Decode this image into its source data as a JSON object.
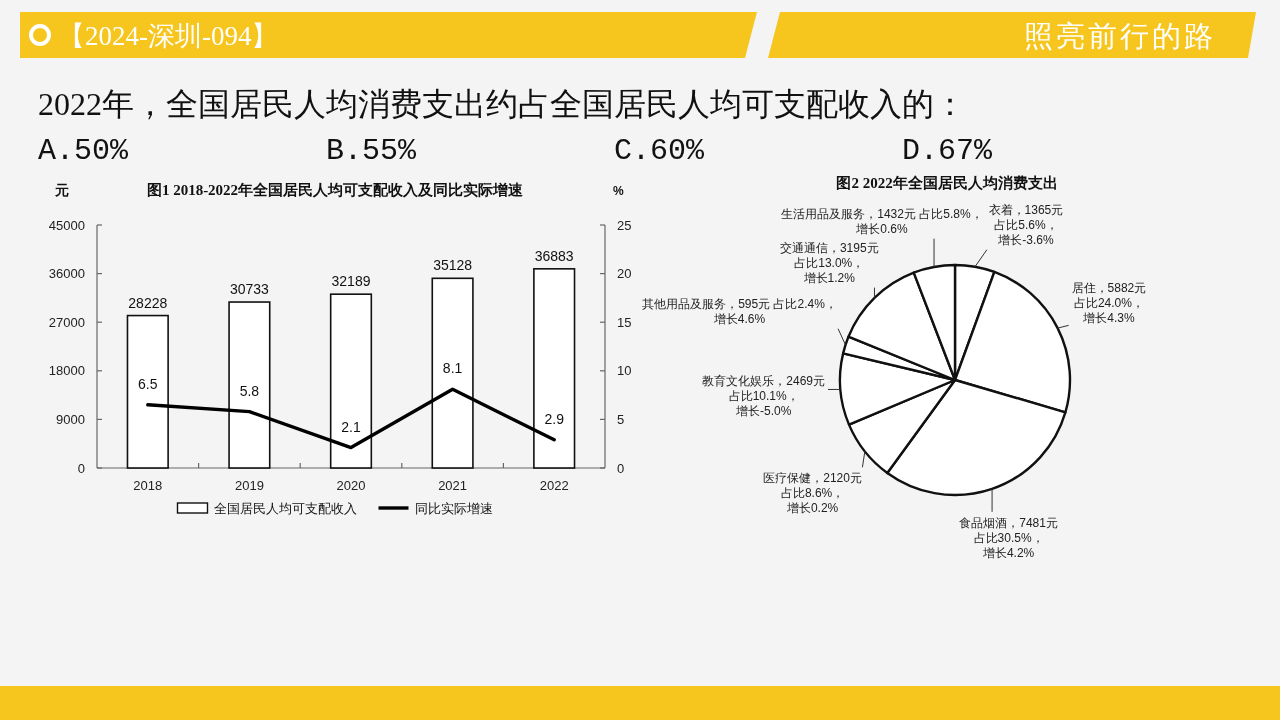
{
  "chart_data": [
    {
      "type": "bar",
      "title": "图1 2018-2022年全国居民人均可支配收入及同比实际增速",
      "ylabel": "元",
      "y2label": "%",
      "categories": [
        "2018",
        "2019",
        "2020",
        "2021",
        "2022"
      ],
      "series": [
        {
          "name": "全国居民人均可支配收入",
          "type": "bar",
          "color": "#ffffff",
          "values": [
            28228,
            30733,
            32189,
            35128,
            36883
          ]
        },
        {
          "name": "同比实际增速",
          "type": "line",
          "color": "#000000",
          "axis": "y2",
          "values": [
            6.5,
            5.8,
            2.1,
            8.1,
            2.9
          ]
        }
      ],
      "ylim": [
        0,
        45000
      ],
      "yticks": [
        0,
        9000,
        18000,
        27000,
        36000,
        45000
      ],
      "y2lim": [
        0,
        25
      ],
      "y2ticks": [
        0,
        5,
        10,
        15,
        20,
        25
      ],
      "data_labels": true,
      "legend": "bottom",
      "annotations": [
        "【2024-深圳-094】",
        "照亮前行的路",
        "2022年，全国居民人均消费支出约占全国居民人均可支配收入的：",
        "A.50%",
        "B.55%",
        "C.60%",
        "D.67%"
      ]
    },
    {
      "type": "pie",
      "title": "图2 2022年全国居民人均消费支出",
      "categories": [
        "衣着",
        "居住",
        "食品烟酒",
        "医疗保健",
        "教育文化娱乐",
        "其他用品及服务",
        "交通通信",
        "生活用品及服务"
      ],
      "values": [
        1365,
        5882,
        7481,
        2120,
        2469,
        595,
        3195,
        1432
      ],
      "colors": [
        "#ffffff",
        "#ffffff",
        "#ffffff",
        "#ffffff",
        "#ffffff",
        "#ffffff",
        "#ffffff",
        "#ffffff"
      ],
      "value_labels": [
        "1365元占比5.6%，增长-3.6%",
        "5882元占比24.0%，增长4.3%",
        "7481元占比30.5%，增长4.2%",
        "2120元占比8.6%，增长0.2%",
        "2469元占比10.1%，增长-5.0%",
        "595元 占比2.4%，增长4.6%",
        "3195元占比13.0%，增长1.2%",
        "1432元 占比5.8%，增长0.6%"
      ]
    }
  ]
}
